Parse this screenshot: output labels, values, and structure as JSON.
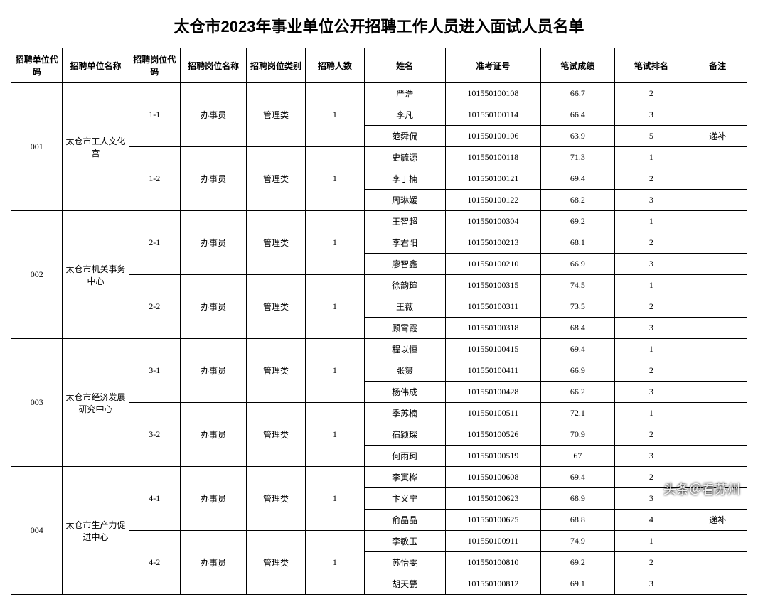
{
  "title": "太仓市2023年事业单位公开招聘工作人员进入面试人员名单",
  "watermark": "头条＠看苏州",
  "headers": {
    "unit_code": "招聘单位代码",
    "unit_name": "招聘单位名称",
    "pos_code": "招聘岗位代码",
    "pos_name": "招聘岗位名称",
    "pos_type": "招聘岗位类别",
    "count": "招聘人数",
    "name": "姓名",
    "ticket": "准考证号",
    "score": "笔试成绩",
    "rank": "笔试排名",
    "remark": "备注"
  },
  "units": [
    {
      "code": "001",
      "name": "太仓市工人文化宫",
      "positions": [
        {
          "code": "1-1",
          "name": "办事员",
          "type": "管理类",
          "count": "1",
          "candidates": [
            {
              "name": "严浩",
              "ticket": "101550100108",
              "score": "66.7",
              "rank": "2",
              "remark": ""
            },
            {
              "name": "李凡",
              "ticket": "101550100114",
              "score": "66.4",
              "rank": "3",
              "remark": ""
            },
            {
              "name": "范舜侃",
              "ticket": "101550100106",
              "score": "63.9",
              "rank": "5",
              "remark": "递补"
            }
          ]
        },
        {
          "code": "1-2",
          "name": "办事员",
          "type": "管理类",
          "count": "1",
          "candidates": [
            {
              "name": "史毓源",
              "ticket": "101550100118",
              "score": "71.3",
              "rank": "1",
              "remark": ""
            },
            {
              "name": "李丁楠",
              "ticket": "101550100121",
              "score": "69.4",
              "rank": "2",
              "remark": ""
            },
            {
              "name": "周琳媛",
              "ticket": "101550100122",
              "score": "68.2",
              "rank": "3",
              "remark": ""
            }
          ]
        }
      ]
    },
    {
      "code": "002",
      "name": "太仓市机关事务中心",
      "positions": [
        {
          "code": "2-1",
          "name": "办事员",
          "type": "管理类",
          "count": "1",
          "candidates": [
            {
              "name": "王智超",
              "ticket": "101550100304",
              "score": "69.2",
              "rank": "1",
              "remark": ""
            },
            {
              "name": "李君阳",
              "ticket": "101550100213",
              "score": "68.1",
              "rank": "2",
              "remark": ""
            },
            {
              "name": "廖智鑫",
              "ticket": "101550100210",
              "score": "66.9",
              "rank": "3",
              "remark": ""
            }
          ]
        },
        {
          "code": "2-2",
          "name": "办事员",
          "type": "管理类",
          "count": "1",
          "candidates": [
            {
              "name": "徐韵瑄",
              "ticket": "101550100315",
              "score": "74.5",
              "rank": "1",
              "remark": ""
            },
            {
              "name": "王薇",
              "ticket": "101550100311",
              "score": "73.5",
              "rank": "2",
              "remark": ""
            },
            {
              "name": "顾霄霞",
              "ticket": "101550100318",
              "score": "68.4",
              "rank": "3",
              "remark": ""
            }
          ]
        }
      ]
    },
    {
      "code": "003",
      "name": "太仓市经济发展研究中心",
      "positions": [
        {
          "code": "3-1",
          "name": "办事员",
          "type": "管理类",
          "count": "1",
          "candidates": [
            {
              "name": "程以恒",
              "ticket": "101550100415",
              "score": "69.4",
              "rank": "1",
              "remark": ""
            },
            {
              "name": "张赟",
              "ticket": "101550100411",
              "score": "66.9",
              "rank": "2",
              "remark": ""
            },
            {
              "name": "杨伟成",
              "ticket": "101550100428",
              "score": "66.2",
              "rank": "3",
              "remark": ""
            }
          ]
        },
        {
          "code": "3-2",
          "name": "办事员",
          "type": "管理类",
          "count": "1",
          "candidates": [
            {
              "name": "季苏楠",
              "ticket": "101550100511",
              "score": "72.1",
              "rank": "1",
              "remark": ""
            },
            {
              "name": "宿颖琛",
              "ticket": "101550100526",
              "score": "70.9",
              "rank": "2",
              "remark": ""
            },
            {
              "name": "何雨珂",
              "ticket": "101550100519",
              "score": "67",
              "rank": "3",
              "remark": ""
            }
          ]
        }
      ]
    },
    {
      "code": "004",
      "name": "太仓市生产力促进中心",
      "positions": [
        {
          "code": "4-1",
          "name": "办事员",
          "type": "管理类",
          "count": "1",
          "candidates": [
            {
              "name": "李寅桦",
              "ticket": "101550100608",
              "score": "69.4",
              "rank": "2",
              "remark": ""
            },
            {
              "name": "卞义宁",
              "ticket": "101550100623",
              "score": "68.9",
              "rank": "3",
              "remark": ""
            },
            {
              "name": "俞晶晶",
              "ticket": "101550100625",
              "score": "68.8",
              "rank": "4",
              "remark": "递补"
            }
          ]
        },
        {
          "code": "4-2",
          "name": "办事员",
          "type": "管理类",
          "count": "1",
          "candidates": [
            {
              "name": "李敏玉",
              "ticket": "101550100911",
              "score": "74.9",
              "rank": "1",
              "remark": ""
            },
            {
              "name": "苏怡雯",
              "ticket": "101550100810",
              "score": "69.2",
              "rank": "2",
              "remark": ""
            },
            {
              "name": "胡天甍",
              "ticket": "101550100812",
              "score": "69.1",
              "rank": "3",
              "remark": ""
            }
          ]
        }
      ]
    }
  ]
}
